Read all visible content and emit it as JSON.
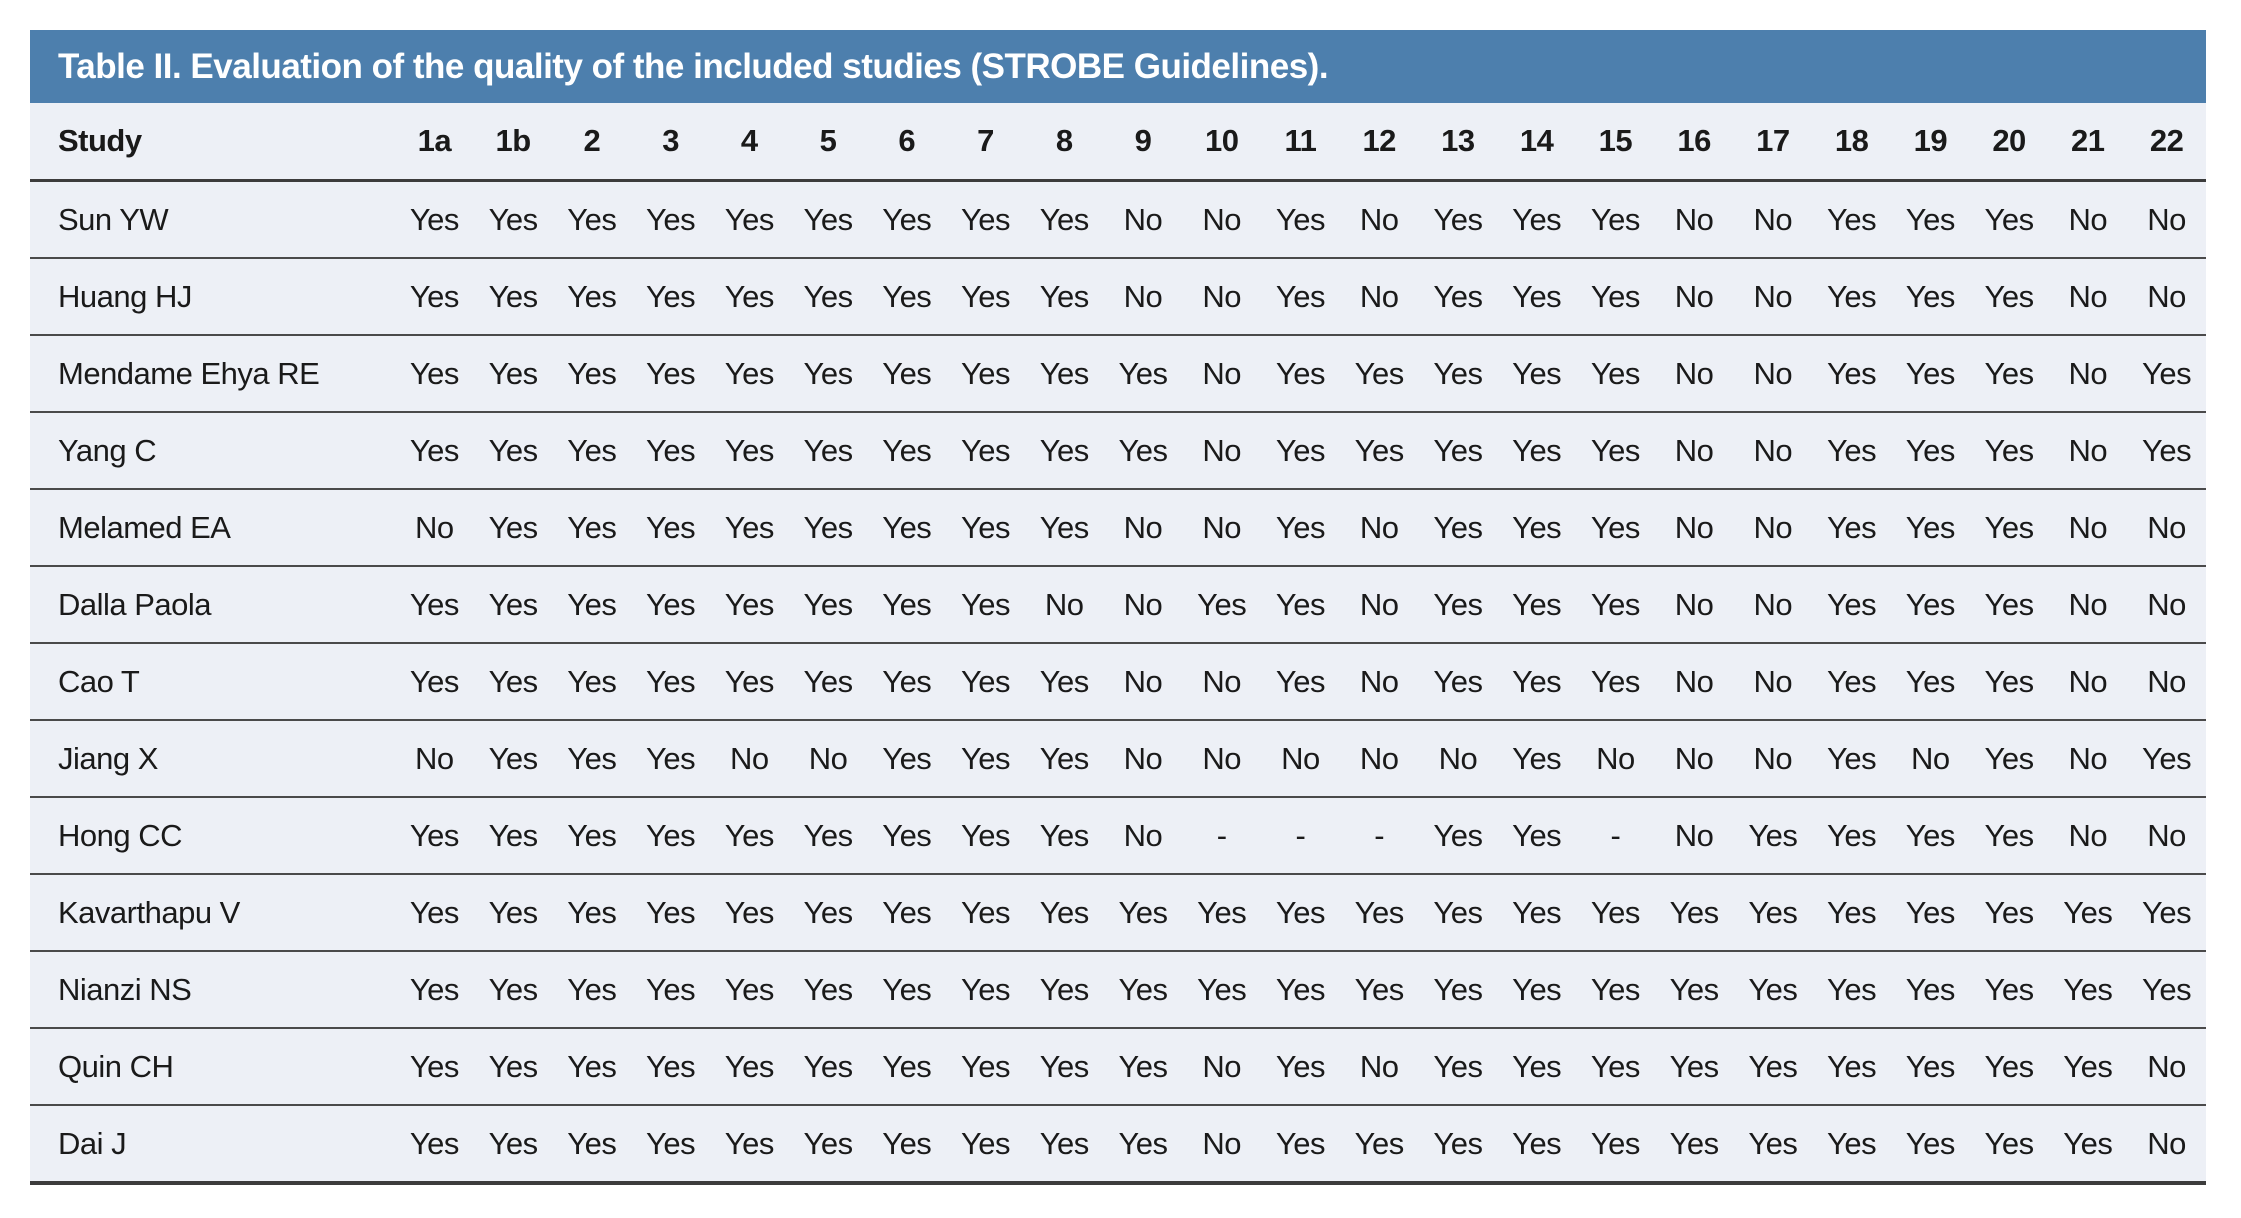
{
  "table": {
    "title": "Table II. Evaluation of the quality of the included studies (STROBE Guidelines).",
    "columns": [
      "Study",
      "1a",
      "1b",
      "2",
      "3",
      "4",
      "5",
      "6",
      "7",
      "8",
      "9",
      "10",
      "11",
      "12",
      "13",
      "14",
      "15",
      "16",
      "17",
      "18",
      "19",
      "20",
      "21",
      "22"
    ],
    "rows": [
      {
        "study": "Sun YW",
        "values": [
          "Yes",
          "Yes",
          "Yes",
          "Yes",
          "Yes",
          "Yes",
          "Yes",
          "Yes",
          "Yes",
          "No",
          "No",
          "Yes",
          "No",
          "Yes",
          "Yes",
          "Yes",
          "No",
          "No",
          "Yes",
          "Yes",
          "Yes",
          "No",
          "No"
        ]
      },
      {
        "study": "Huang HJ",
        "values": [
          "Yes",
          "Yes",
          "Yes",
          "Yes",
          "Yes",
          "Yes",
          "Yes",
          "Yes",
          "Yes",
          "No",
          "No",
          "Yes",
          "No",
          "Yes",
          "Yes",
          "Yes",
          "No",
          "No",
          "Yes",
          "Yes",
          "Yes",
          "No",
          "No"
        ]
      },
      {
        "study": "Mendame Ehya RE",
        "values": [
          "Yes",
          "Yes",
          "Yes",
          "Yes",
          "Yes",
          "Yes",
          "Yes",
          "Yes",
          "Yes",
          "Yes",
          "No",
          "Yes",
          "Yes",
          "Yes",
          "Yes",
          "Yes",
          "No",
          "No",
          "Yes",
          "Yes",
          "Yes",
          "No",
          "Yes"
        ]
      },
      {
        "study": "Yang C",
        "values": [
          "Yes",
          "Yes",
          "Yes",
          "Yes",
          "Yes",
          "Yes",
          "Yes",
          "Yes",
          "Yes",
          "Yes",
          "No",
          "Yes",
          "Yes",
          "Yes",
          "Yes",
          "Yes",
          "No",
          "No",
          "Yes",
          "Yes",
          "Yes",
          "No",
          "Yes"
        ]
      },
      {
        "study": "Melamed EA",
        "values": [
          "No",
          "Yes",
          "Yes",
          "Yes",
          "Yes",
          "Yes",
          "Yes",
          "Yes",
          "Yes",
          "No",
          "No",
          "Yes",
          "No",
          "Yes",
          "Yes",
          "Yes",
          "No",
          "No",
          "Yes",
          "Yes",
          "Yes",
          "No",
          "No"
        ]
      },
      {
        "study": "Dalla Paola",
        "values": [
          "Yes",
          "Yes",
          "Yes",
          "Yes",
          "Yes",
          "Yes",
          "Yes",
          "Yes",
          "No",
          "No",
          "Yes",
          "Yes",
          "No",
          "Yes",
          "Yes",
          "Yes",
          "No",
          "No",
          "Yes",
          "Yes",
          "Yes",
          "No",
          "No"
        ]
      },
      {
        "study": "Cao T",
        "values": [
          "Yes",
          "Yes",
          "Yes",
          "Yes",
          "Yes",
          "Yes",
          "Yes",
          "Yes",
          "Yes",
          "No",
          "No",
          "Yes",
          "No",
          "Yes",
          "Yes",
          "Yes",
          "No",
          "No",
          "Yes",
          "Yes",
          "Yes",
          "No",
          "No"
        ]
      },
      {
        "study": "Jiang X",
        "values": [
          "No",
          "Yes",
          "Yes",
          "Yes",
          "No",
          "No",
          "Yes",
          "Yes",
          "Yes",
          "No",
          "No",
          "No",
          "No",
          "No",
          "Yes",
          "No",
          "No",
          "No",
          "Yes",
          "No",
          "Yes",
          "No",
          "Yes"
        ]
      },
      {
        "study": "Hong CC",
        "values": [
          "Yes",
          "Yes",
          "Yes",
          "Yes",
          "Yes",
          "Yes",
          "Yes",
          "Yes",
          "Yes",
          "No",
          "-",
          "-",
          "-",
          "Yes",
          "Yes",
          "-",
          "No",
          "Yes",
          "Yes",
          "Yes",
          "Yes",
          "No",
          "No"
        ]
      },
      {
        "study": "Kavarthapu V",
        "values": [
          "Yes",
          "Yes",
          "Yes",
          "Yes",
          "Yes",
          "Yes",
          "Yes",
          "Yes",
          "Yes",
          "Yes",
          "Yes",
          "Yes",
          "Yes",
          "Yes",
          "Yes",
          "Yes",
          "Yes",
          "Yes",
          "Yes",
          "Yes",
          "Yes",
          "Yes",
          "Yes"
        ]
      },
      {
        "study": "Nianzi NS",
        "values": [
          "Yes",
          "Yes",
          "Yes",
          "Yes",
          "Yes",
          "Yes",
          "Yes",
          "Yes",
          "Yes",
          "Yes",
          "Yes",
          "Yes",
          "Yes",
          "Yes",
          "Yes",
          "Yes",
          "Yes",
          "Yes",
          "Yes",
          "Yes",
          "Yes",
          "Yes",
          "Yes"
        ]
      },
      {
        "study": "Quin CH",
        "values": [
          "Yes",
          "Yes",
          "Yes",
          "Yes",
          "Yes",
          "Yes",
          "Yes",
          "Yes",
          "Yes",
          "Yes",
          "No",
          "Yes",
          "No",
          "Yes",
          "Yes",
          "Yes",
          "Yes",
          "Yes",
          "Yes",
          "Yes",
          "Yes",
          "Yes",
          "No"
        ]
      },
      {
        "study": "Dai J",
        "values": [
          "Yes",
          "Yes",
          "Yes",
          "Yes",
          "Yes",
          "Yes",
          "Yes",
          "Yes",
          "Yes",
          "Yes",
          "No",
          "Yes",
          "Yes",
          "Yes",
          "Yes",
          "Yes",
          "Yes",
          "Yes",
          "Yes",
          "Yes",
          "Yes",
          "Yes",
          "No"
        ]
      }
    ]
  },
  "colors": {
    "title_bar_bg": "#4d7fad",
    "title_text": "#ffffff",
    "row_bg": "#edf0f6",
    "body_text": "#1a1a1a",
    "separator": "#4a4a4a",
    "page_bg": "#ffffff"
  }
}
